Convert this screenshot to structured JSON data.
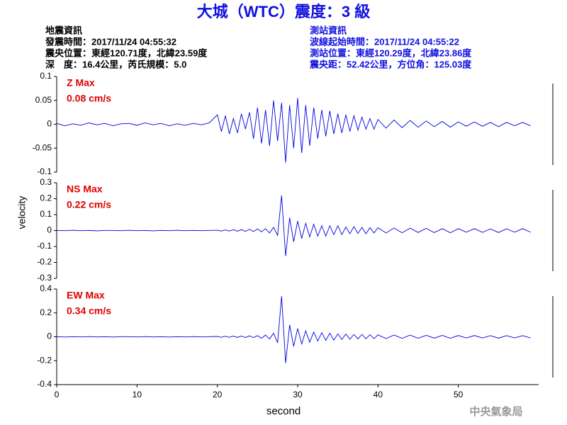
{
  "header": {
    "title": "大城（WTC）震度：3 級",
    "quake_info": [
      "地震資訊",
      "發震時間：2017/11/24 04:55:32",
      "震央位置：東經120.71度，北緯23.59度",
      "深　度：16.4公里，芮氏規模：5.0"
    ],
    "station_info": [
      "測站資訊",
      "波線起始時間：2017/11/24 04:55:22",
      "測站位置：東經120.29度，北緯23.86度",
      "震央距：52.42公里，方位角：125.03度"
    ]
  },
  "ylabel": "velocity",
  "footer": "中央氣象局",
  "chart_data": [
    {
      "type": "line",
      "label": "Z Max",
      "max_label": "0.08 cm/s",
      "color": "#0000e0",
      "xlim": [
        0,
        60
      ],
      "ylim": [
        -0.1,
        0.1
      ],
      "yticks": [
        0.1,
        0.05,
        0,
        -0.05,
        -0.1
      ],
      "x": [
        0,
        1,
        2,
        3,
        4,
        5,
        6,
        7,
        8,
        9,
        10,
        11,
        12,
        13,
        14,
        15,
        16,
        17,
        18,
        19,
        20,
        20.5,
        21,
        21.5,
        22,
        22.5,
        23,
        23.5,
        24,
        24.5,
        25,
        25.5,
        26,
        26.5,
        27,
        27.5,
        28,
        28.5,
        29,
        29.5,
        30,
        30.5,
        31,
        31.5,
        32,
        32.5,
        33,
        33.5,
        34,
        34.5,
        35,
        35.5,
        36,
        36.5,
        37,
        37.5,
        38,
        38.5,
        39,
        39.5,
        40,
        41,
        42,
        43,
        44,
        45,
        46,
        47,
        48,
        49,
        50,
        51,
        52,
        53,
        54,
        55,
        56,
        57,
        58,
        59
      ],
      "values": [
        0.002,
        -0.003,
        0.001,
        -0.002,
        0.003,
        -0.001,
        0.002,
        -0.003,
        0.001,
        0.002,
        -0.002,
        0.003,
        -0.001,
        0.002,
        -0.003,
        0.001,
        -0.002,
        0.002,
        -0.001,
        0.003,
        0.02,
        -0.015,
        0.018,
        -0.02,
        0.012,
        -0.018,
        0.022,
        -0.01,
        0.025,
        -0.03,
        0.035,
        -0.04,
        0.03,
        -0.045,
        0.05,
        -0.035,
        0.045,
        -0.08,
        0.04,
        -0.05,
        0.055,
        -0.06,
        0.04,
        -0.045,
        0.035,
        -0.03,
        0.03,
        -0.025,
        0.028,
        -0.02,
        0.022,
        -0.018,
        0.02,
        -0.015,
        0.018,
        -0.012,
        0.015,
        -0.01,
        0.012,
        -0.01,
        0.01,
        -0.008,
        0.009,
        -0.007,
        0.008,
        -0.006,
        0.007,
        -0.005,
        0.006,
        -0.006,
        0.005,
        -0.004,
        0.005,
        -0.004,
        0.004,
        -0.005,
        0.004,
        -0.003,
        0.004,
        -0.003
      ]
    },
    {
      "type": "line",
      "label": "NS Max",
      "max_label": "0.22 cm/s",
      "color": "#0000e0",
      "xlim": [
        0,
        60
      ],
      "ylim": [
        -0.3,
        0.3
      ],
      "yticks": [
        0.3,
        0.2,
        0.1,
        0,
        -0.1,
        -0.2,
        -0.3
      ],
      "x": [
        0,
        1,
        2,
        3,
        4,
        5,
        6,
        7,
        8,
        9,
        10,
        11,
        12,
        13,
        14,
        15,
        16,
        17,
        18,
        19,
        20,
        20.5,
        21,
        21.5,
        22,
        22.5,
        23,
        23.5,
        24,
        24.5,
        25,
        25.5,
        26,
        26.5,
        27,
        27.5,
        28,
        28.5,
        29,
        29.5,
        30,
        30.5,
        31,
        31.5,
        32,
        32.5,
        33,
        33.5,
        34,
        34.5,
        35,
        35.5,
        36,
        36.5,
        37,
        37.5,
        38,
        38.5,
        39,
        39.5,
        40,
        41,
        42,
        43,
        44,
        45,
        46,
        47,
        48,
        49,
        50,
        51,
        52,
        53,
        54,
        55,
        56,
        57,
        58,
        59
      ],
      "values": [
        0.001,
        -0.001,
        0.002,
        -0.001,
        0.001,
        -0.002,
        0.001,
        0.001,
        -0.001,
        0.002,
        -0.001,
        0.001,
        -0.002,
        0.001,
        -0.001,
        0.002,
        -0.001,
        0.001,
        -0.001,
        0.001,
        0.002,
        -0.003,
        0.004,
        -0.003,
        0.005,
        -0.004,
        0.006,
        -0.005,
        0.008,
        -0.006,
        0.01,
        -0.008,
        0.012,
        -0.015,
        0.02,
        -0.03,
        0.22,
        -0.16,
        0.08,
        -0.07,
        0.06,
        -0.05,
        0.045,
        -0.04,
        0.04,
        -0.035,
        0.03,
        -0.035,
        0.03,
        -0.025,
        0.03,
        -0.025,
        0.022,
        -0.02,
        0.025,
        -0.018,
        0.02,
        -0.02,
        0.018,
        -0.015,
        0.018,
        -0.015,
        0.016,
        -0.014,
        0.015,
        -0.012,
        0.014,
        -0.013,
        0.012,
        -0.014,
        0.012,
        -0.01,
        0.012,
        -0.011,
        0.01,
        -0.012,
        0.011,
        -0.01,
        0.012,
        -0.01
      ]
    },
    {
      "type": "line",
      "label": "EW Max",
      "max_label": "0.34 cm/s",
      "color": "#0000e0",
      "xlim": [
        0,
        60
      ],
      "ylim": [
        -0.4,
        0.4
      ],
      "yticks": [
        0.4,
        0.2,
        0,
        -0.2,
        -0.4
      ],
      "xticks": [
        0,
        10,
        20,
        30,
        40,
        50
      ],
      "xlabel": "second",
      "x": [
        0,
        1,
        2,
        3,
        4,
        5,
        6,
        7,
        8,
        9,
        10,
        11,
        12,
        13,
        14,
        15,
        16,
        17,
        18,
        19,
        20,
        20.5,
        21,
        21.5,
        22,
        22.5,
        23,
        23.5,
        24,
        24.5,
        25,
        25.5,
        26,
        26.5,
        27,
        27.5,
        28,
        28.5,
        29,
        29.5,
        30,
        30.5,
        31,
        31.5,
        32,
        32.5,
        33,
        33.5,
        34,
        34.5,
        35,
        35.5,
        36,
        36.5,
        37,
        37.5,
        38,
        38.5,
        39,
        39.5,
        40,
        41,
        42,
        43,
        44,
        45,
        46,
        47,
        48,
        49,
        50,
        51,
        52,
        53,
        54,
        55,
        56,
        57,
        58,
        59
      ],
      "values": [
        0.001,
        -0.002,
        0.001,
        -0.001,
        0.002,
        -0.001,
        0.001,
        -0.002,
        0.001,
        0.001,
        -0.001,
        0.002,
        -0.001,
        0.001,
        -0.002,
        0.001,
        -0.001,
        0.002,
        -0.001,
        0.001,
        0.003,
        -0.004,
        0.005,
        -0.004,
        0.006,
        -0.005,
        0.007,
        -0.006,
        0.008,
        -0.007,
        0.01,
        -0.012,
        0.015,
        -0.018,
        0.03,
        -0.05,
        0.34,
        -0.22,
        0.1,
        -0.08,
        0.07,
        -0.06,
        0.05,
        -0.045,
        0.04,
        -0.035,
        0.035,
        -0.03,
        0.03,
        -0.028,
        0.025,
        -0.022,
        0.024,
        -0.02,
        0.02,
        -0.018,
        0.02,
        -0.016,
        0.018,
        -0.015,
        0.016,
        -0.014,
        0.015,
        -0.013,
        0.014,
        -0.012,
        0.013,
        -0.011,
        0.012,
        -0.012,
        0.011,
        -0.01,
        0.011,
        -0.01,
        0.01,
        -0.011,
        0.01,
        -0.009,
        0.01,
        -0.009
      ]
    }
  ]
}
